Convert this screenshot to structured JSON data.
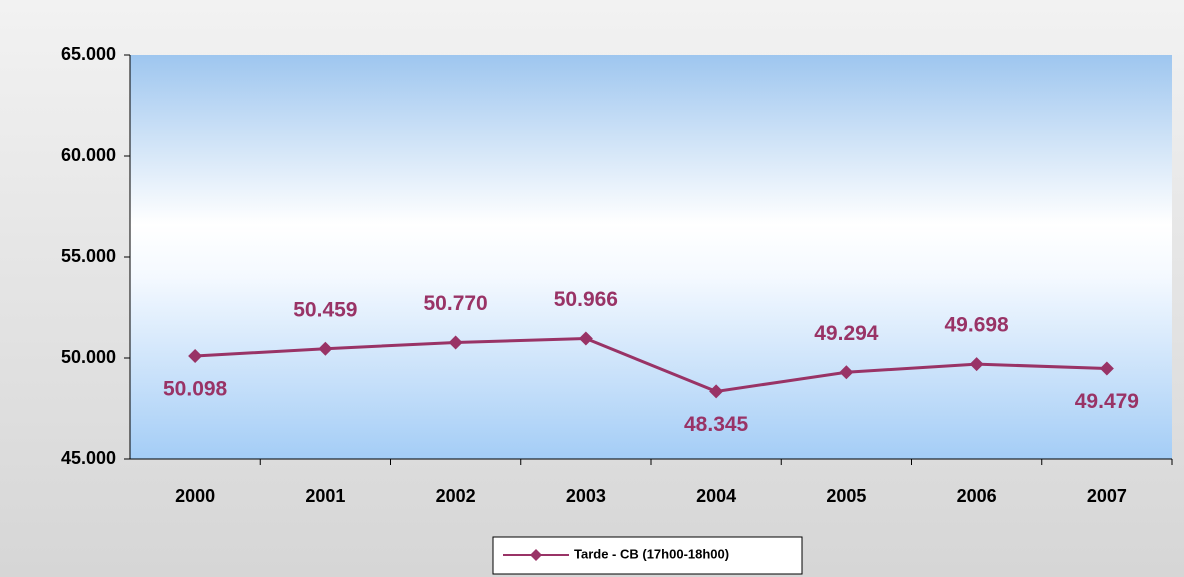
{
  "chart_data": {
    "type": "line",
    "categories": [
      "2000",
      "2001",
      "2002",
      "2003",
      "2004",
      "2005",
      "2006",
      "2007"
    ],
    "series": [
      {
        "name": "Tarde - CB (17h00-18h00)",
        "color": "#993366",
        "values": [
          50098,
          50459,
          50770,
          50966,
          48345,
          49294,
          49698,
          49479
        ],
        "value_labels": [
          "50.098",
          "50.459",
          "50.770",
          "50.966",
          "48.345",
          "49.294",
          "49.698",
          "49.479"
        ]
      }
    ],
    "ylim": [
      45000,
      65000
    ],
    "yticks": [
      {
        "value": 45000,
        "label": "45.000"
      },
      {
        "value": 50000,
        "label": "50.000"
      },
      {
        "value": 55000,
        "label": "55.000"
      },
      {
        "value": 60000,
        "label": "60.000"
      },
      {
        "value": 65000,
        "label": "65.000"
      }
    ],
    "legend": "bottom"
  }
}
